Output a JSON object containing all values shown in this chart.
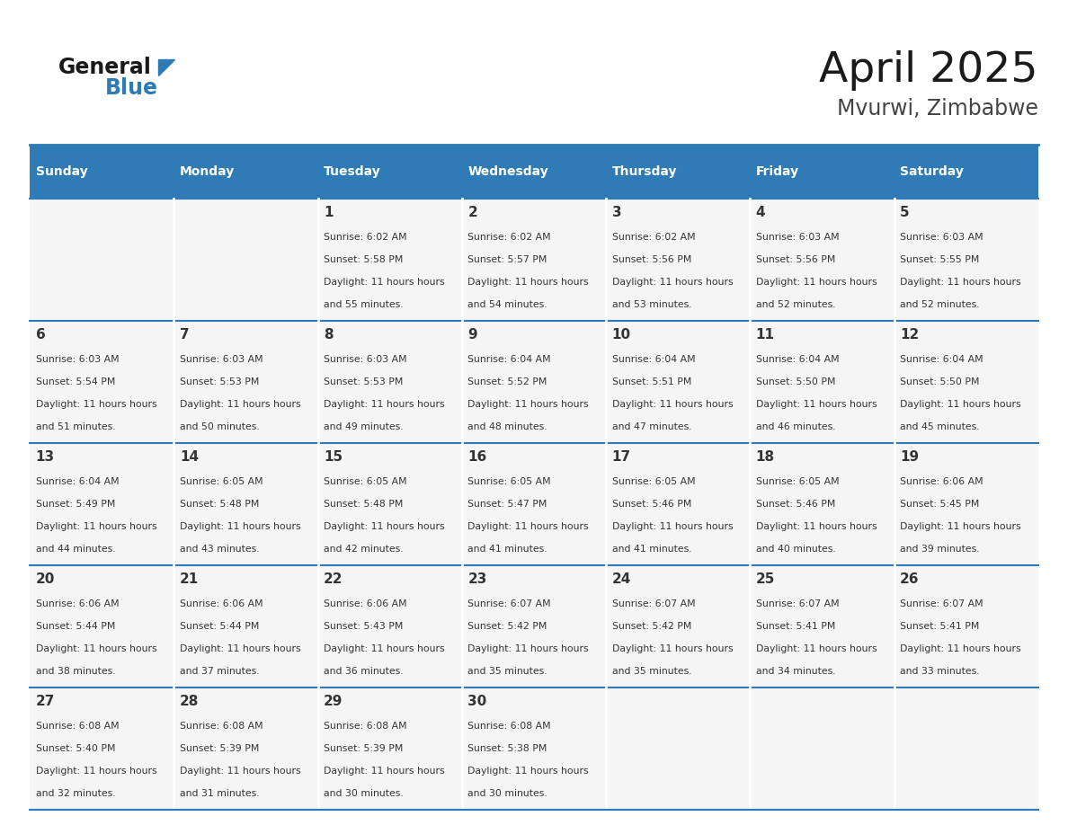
{
  "title": "April 2025",
  "subtitle": "Mvurwi, Zimbabwe",
  "days_of_week": [
    "Sunday",
    "Monday",
    "Tuesday",
    "Wednesday",
    "Thursday",
    "Friday",
    "Saturday"
  ],
  "header_bg": "#2E7BB5",
  "header_text_color": "#FFFFFF",
  "cell_bg": "#F5F5F5",
  "border_color": "#2E7BB5",
  "title_color": "#1a1a1a",
  "subtitle_color": "#444444",
  "text_color": "#333333",
  "calendar_data": [
    [
      {
        "day": "",
        "sunrise": "",
        "sunset": "",
        "daylight": ""
      },
      {
        "day": "",
        "sunrise": "",
        "sunset": "",
        "daylight": ""
      },
      {
        "day": "1",
        "sunrise": "6:02 AM",
        "sunset": "5:58 PM",
        "daylight": "11 hours and 55 minutes."
      },
      {
        "day": "2",
        "sunrise": "6:02 AM",
        "sunset": "5:57 PM",
        "daylight": "11 hours and 54 minutes."
      },
      {
        "day": "3",
        "sunrise": "6:02 AM",
        "sunset": "5:56 PM",
        "daylight": "11 hours and 53 minutes."
      },
      {
        "day": "4",
        "sunrise": "6:03 AM",
        "sunset": "5:56 PM",
        "daylight": "11 hours and 52 minutes."
      },
      {
        "day": "5",
        "sunrise": "6:03 AM",
        "sunset": "5:55 PM",
        "daylight": "11 hours and 52 minutes."
      }
    ],
    [
      {
        "day": "6",
        "sunrise": "6:03 AM",
        "sunset": "5:54 PM",
        "daylight": "11 hours and 51 minutes."
      },
      {
        "day": "7",
        "sunrise": "6:03 AM",
        "sunset": "5:53 PM",
        "daylight": "11 hours and 50 minutes."
      },
      {
        "day": "8",
        "sunrise": "6:03 AM",
        "sunset": "5:53 PM",
        "daylight": "11 hours and 49 minutes."
      },
      {
        "day": "9",
        "sunrise": "6:04 AM",
        "sunset": "5:52 PM",
        "daylight": "11 hours and 48 minutes."
      },
      {
        "day": "10",
        "sunrise": "6:04 AM",
        "sunset": "5:51 PM",
        "daylight": "11 hours and 47 minutes."
      },
      {
        "day": "11",
        "sunrise": "6:04 AM",
        "sunset": "5:50 PM",
        "daylight": "11 hours and 46 minutes."
      },
      {
        "day": "12",
        "sunrise": "6:04 AM",
        "sunset": "5:50 PM",
        "daylight": "11 hours and 45 minutes."
      }
    ],
    [
      {
        "day": "13",
        "sunrise": "6:04 AM",
        "sunset": "5:49 PM",
        "daylight": "11 hours and 44 minutes."
      },
      {
        "day": "14",
        "sunrise": "6:05 AM",
        "sunset": "5:48 PM",
        "daylight": "11 hours and 43 minutes."
      },
      {
        "day": "15",
        "sunrise": "6:05 AM",
        "sunset": "5:48 PM",
        "daylight": "11 hours and 42 minutes."
      },
      {
        "day": "16",
        "sunrise": "6:05 AM",
        "sunset": "5:47 PM",
        "daylight": "11 hours and 41 minutes."
      },
      {
        "day": "17",
        "sunrise": "6:05 AM",
        "sunset": "5:46 PM",
        "daylight": "11 hours and 41 minutes."
      },
      {
        "day": "18",
        "sunrise": "6:05 AM",
        "sunset": "5:46 PM",
        "daylight": "11 hours and 40 minutes."
      },
      {
        "day": "19",
        "sunrise": "6:06 AM",
        "sunset": "5:45 PM",
        "daylight": "11 hours and 39 minutes."
      }
    ],
    [
      {
        "day": "20",
        "sunrise": "6:06 AM",
        "sunset": "5:44 PM",
        "daylight": "11 hours and 38 minutes."
      },
      {
        "day": "21",
        "sunrise": "6:06 AM",
        "sunset": "5:44 PM",
        "daylight": "11 hours and 37 minutes."
      },
      {
        "day": "22",
        "sunrise": "6:06 AM",
        "sunset": "5:43 PM",
        "daylight": "11 hours and 36 minutes."
      },
      {
        "day": "23",
        "sunrise": "6:07 AM",
        "sunset": "5:42 PM",
        "daylight": "11 hours and 35 minutes."
      },
      {
        "day": "24",
        "sunrise": "6:07 AM",
        "sunset": "5:42 PM",
        "daylight": "11 hours and 35 minutes."
      },
      {
        "day": "25",
        "sunrise": "6:07 AM",
        "sunset": "5:41 PM",
        "daylight": "11 hours and 34 minutes."
      },
      {
        "day": "26",
        "sunrise": "6:07 AM",
        "sunset": "5:41 PM",
        "daylight": "11 hours and 33 minutes."
      }
    ],
    [
      {
        "day": "27",
        "sunrise": "6:08 AM",
        "sunset": "5:40 PM",
        "daylight": "11 hours and 32 minutes."
      },
      {
        "day": "28",
        "sunrise": "6:08 AM",
        "sunset": "5:39 PM",
        "daylight": "11 hours and 31 minutes."
      },
      {
        "day": "29",
        "sunrise": "6:08 AM",
        "sunset": "5:39 PM",
        "daylight": "11 hours and 30 minutes."
      },
      {
        "day": "30",
        "sunrise": "6:08 AM",
        "sunset": "5:38 PM",
        "daylight": "11 hours and 30 minutes."
      },
      {
        "day": "",
        "sunrise": "",
        "sunset": "",
        "daylight": ""
      },
      {
        "day": "",
        "sunrise": "",
        "sunset": "",
        "daylight": ""
      },
      {
        "day": "",
        "sunrise": "",
        "sunset": "",
        "daylight": ""
      }
    ]
  ]
}
